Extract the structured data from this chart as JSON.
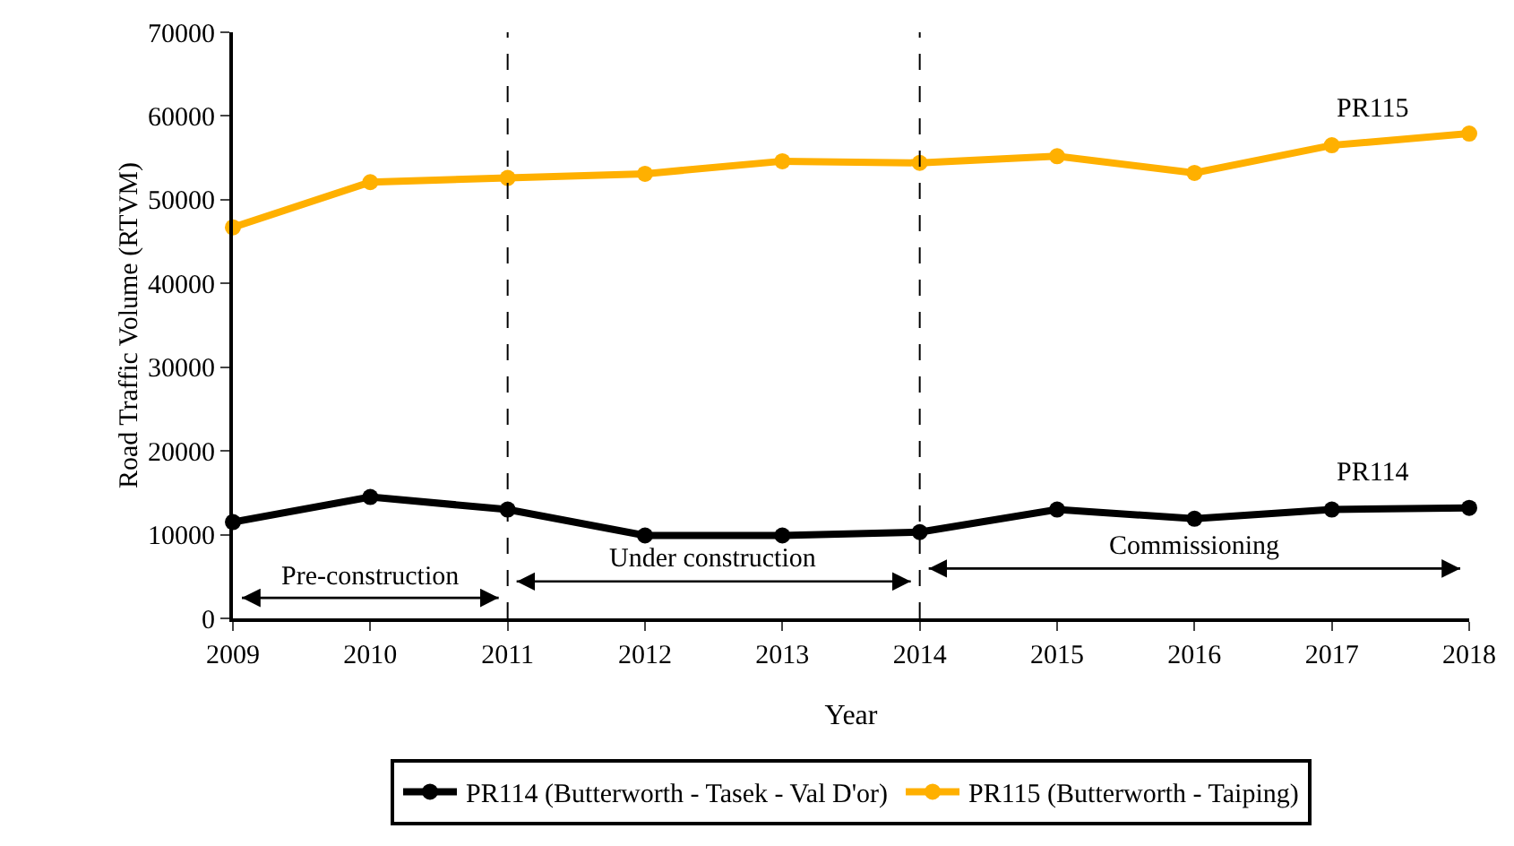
{
  "chart_data": {
    "type": "line",
    "xlabel": "Year",
    "ylabel": "Road Traffic Volume (RTVM)",
    "x": [
      2009,
      2010,
      2011,
      2012,
      2013,
      2014,
      2015,
      2016,
      2017,
      2018
    ],
    "series": [
      {
        "name": "PR114 (Butterworth - Tasek - Val D'or)",
        "color": "#000000",
        "values": [
          11500,
          14500,
          13000,
          9900,
          9900,
          10300,
          13000,
          11900,
          13000,
          13200
        ]
      },
      {
        "name": "PR115 (Butterworth - Taiping)",
        "color": "#ffb000",
        "values": [
          46700,
          52100,
          52600,
          53100,
          54600,
          54400,
          55200,
          53200,
          56500,
          57900
        ]
      }
    ],
    "xlim": [
      2009,
      2018
    ],
    "xticks": [
      2009,
      2010,
      2011,
      2012,
      2013,
      2014,
      2015,
      2016,
      2017,
      2018
    ],
    "ylim": [
      0,
      70000
    ],
    "yticks": [
      0,
      10000,
      20000,
      30000,
      40000,
      50000,
      60000,
      70000
    ],
    "ref_lines": [
      {
        "axis": "x",
        "value": 2011,
        "line_style": "dashed",
        "color": "#000000"
      },
      {
        "axis": "x",
        "value": 2014,
        "line_style": "dashed",
        "color": "#000000"
      }
    ],
    "annotations": [
      "Pre-construction",
      "Under construction",
      "Commissioning",
      "PR114",
      "PR115"
    ],
    "grid": false,
    "legend": "bottom",
    "marker": "circle",
    "line_style": "solid"
  }
}
